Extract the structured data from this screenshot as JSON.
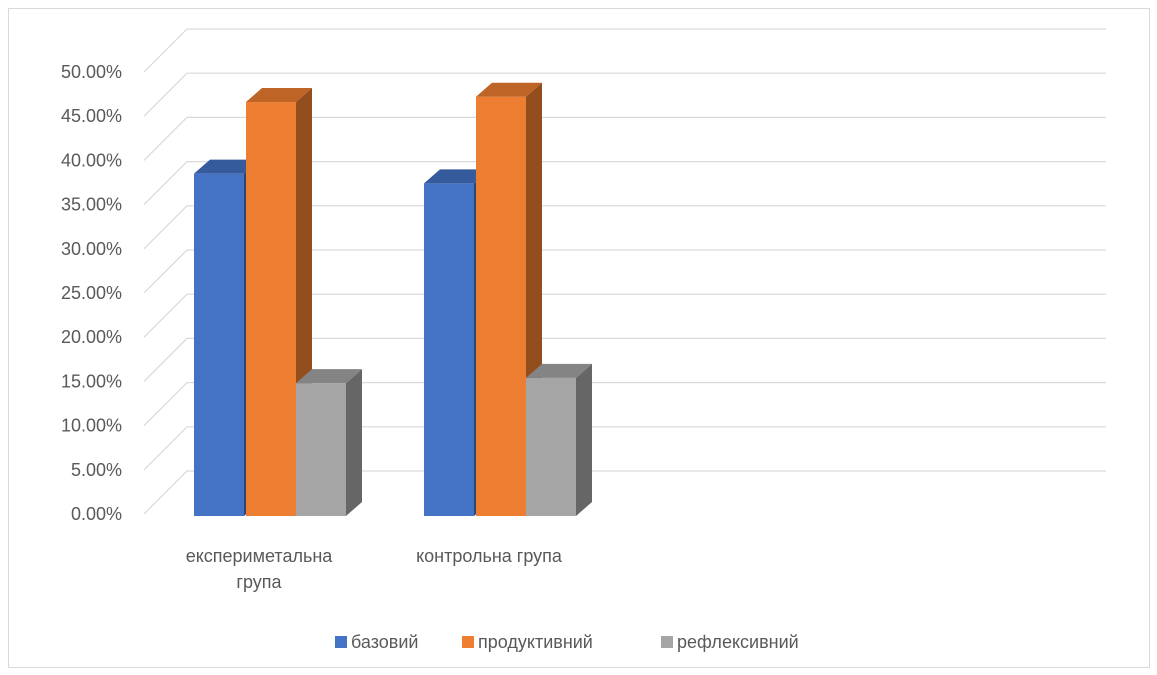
{
  "chart_data": {
    "type": "bar",
    "subtype": "3d-clustered-column",
    "title": "",
    "xlabel": "",
    "ylabel": "",
    "categories": [
      [
        "експериметальна",
        "група"
      ],
      [
        "контрольна група"
      ]
    ],
    "series": [
      {
        "name": "базовий",
        "color": "#4472C4",
        "values": [
          38.5,
          37.4
        ]
      },
      {
        "name": "продуктивний",
        "color": "#ED7D31",
        "values": [
          46.6,
          47.2
        ]
      },
      {
        "name": "рефлексивний",
        "color": "#A5A5A5",
        "values": [
          14.8,
          15.4
        ]
      }
    ],
    "ylim": [
      0,
      50
    ],
    "yticks": [
      {
        "value": 0,
        "label": "0.00%"
      },
      {
        "value": 5,
        "label": "5.00%"
      },
      {
        "value": 10,
        "label": "10.00%"
      },
      {
        "value": 15,
        "label": "15.00%"
      },
      {
        "value": 20,
        "label": "20.00%"
      },
      {
        "value": 25,
        "label": "25.00%"
      },
      {
        "value": 30,
        "label": "30.00%"
      },
      {
        "value": 35,
        "label": "35.00%"
      },
      {
        "value": 40,
        "label": "40.00%"
      },
      {
        "value": 45,
        "label": "45.00%"
      },
      {
        "value": 50,
        "label": "50.00%"
      }
    ],
    "grid": true,
    "legend": "bottom",
    "gridline_color": "#d9d9d9"
  }
}
